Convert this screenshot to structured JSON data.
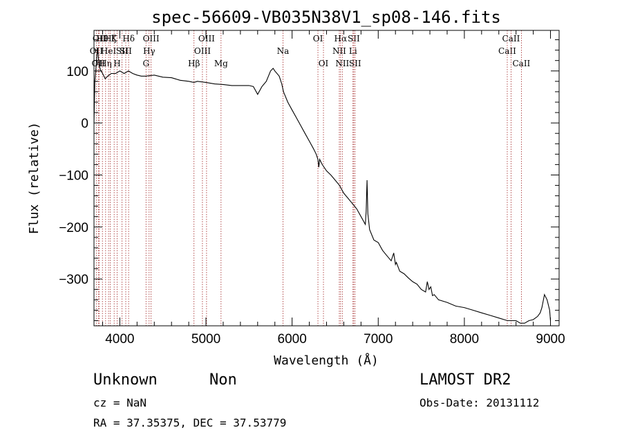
{
  "chart_data": {
    "type": "line",
    "title": "spec-56609-VB035N38V1_sp08-146.fits",
    "xlabel": "Wavelength (Å)",
    "ylabel": "Flux (relative)",
    "xlim": [
      3700,
      9100
    ],
    "ylim": [
      -390,
      178
    ],
    "x_ticks": [
      4000,
      5000,
      6000,
      7000,
      8000,
      9000
    ],
    "y_ticks": [
      100,
      0,
      -100,
      -200,
      -300
    ],
    "grid": false,
    "series": [
      {
        "x": [
          3700,
          3710,
          3720,
          3730,
          3740,
          3760,
          3780,
          3800,
          3830,
          3860,
          3900,
          3950,
          4000,
          4050,
          4100,
          4150,
          4200,
          4250,
          4300,
          4400,
          4500,
          4600,
          4700,
          4800,
          4860,
          4900,
          5000,
          5100,
          5200,
          5300,
          5400,
          5500,
          5550,
          5600,
          5650,
          5700,
          5750,
          5780,
          5800,
          5850,
          5880,
          5900,
          5950,
          6000,
          6050,
          6100,
          6150,
          6200,
          6250,
          6280,
          6300,
          6310,
          6320,
          6350,
          6400,
          6450,
          6500,
          6550,
          6600,
          6650,
          6700,
          6750,
          6800,
          6850,
          6860,
          6870,
          6880,
          6900,
          6950,
          7000,
          7050,
          7100,
          7150,
          7180,
          7200,
          7210,
          7250,
          7300,
          7350,
          7400,
          7450,
          7500,
          7550,
          7570,
          7590,
          7610,
          7630,
          7650,
          7700,
          7800,
          7900,
          8000,
          8100,
          8200,
          8300,
          8400,
          8500,
          8550,
          8600,
          8650,
          8700,
          8750,
          8800,
          8850,
          8880,
          8900,
          8930,
          8960,
          8990,
          9000
        ],
        "values": [
          0,
          80,
          100,
          120,
          145,
          110,
          100,
          95,
          85,
          90,
          95,
          95,
          100,
          95,
          100,
          95,
          92,
          90,
          90,
          92,
          88,
          87,
          82,
          80,
          78,
          80,
          78,
          75,
          74,
          72,
          72,
          72,
          70,
          55,
          70,
          80,
          100,
          105,
          100,
          90,
          75,
          60,
          40,
          25,
          10,
          -5,
          -20,
          -35,
          -50,
          -60,
          -70,
          -85,
          -70,
          -80,
          -92,
          -100,
          -110,
          -120,
          -135,
          -145,
          -155,
          -165,
          -180,
          -195,
          -170,
          -110,
          -175,
          -205,
          -225,
          -230,
          -245,
          -255,
          -265,
          -250,
          -272,
          -268,
          -285,
          -290,
          -298,
          -305,
          -310,
          -320,
          -325,
          -305,
          -320,
          -315,
          -332,
          -330,
          -340,
          -345,
          -352,
          -355,
          -360,
          -365,
          -370,
          -375,
          -380,
          -380,
          -380,
          -385,
          -385,
          -380,
          -378,
          -372,
          -365,
          -355,
          -330,
          -340,
          -360,
          -380
        ]
      }
    ],
    "line_markers": [
      {
        "wavelength": 3727,
        "label": "OII",
        "row": 2
      },
      {
        "wavelength": 3750,
        "label": "OII",
        "row": 3
      },
      {
        "wavelength": 3760,
        "label": "OII",
        "row": 1
      },
      {
        "wavelength": 3798,
        "label": "Hθ",
        "row": 1
      },
      {
        "wavelength": 3835,
        "label": "Hη",
        "row": 3
      },
      {
        "wavelength": 3869,
        "label": "HeI",
        "row": 2
      },
      {
        "wavelength": 3889,
        "label": "Hζ",
        "row": 1
      },
      {
        "wavelength": 3934,
        "label": "K",
        "row": 1
      },
      {
        "wavelength": 3969,
        "label": "H",
        "row": 3
      },
      {
        "wavelength": 4026,
        "label": "SII",
        "row": 2
      },
      {
        "wavelength": 4102,
        "label": "Hδ",
        "row": 1
      },
      {
        "wavelength": 4069,
        "label": "SII",
        "row": 2
      },
      {
        "wavelength": 4304,
        "label": "G",
        "row": 3
      },
      {
        "wavelength": 4340,
        "label": "Hγ",
        "row": 2
      },
      {
        "wavelength": 4363,
        "label": "OIII",
        "row": 1
      },
      {
        "wavelength": 4861,
        "label": "Hβ",
        "row": 3
      },
      {
        "wavelength": 4959,
        "label": "OIII",
        "row": 2
      },
      {
        "wavelength": 5007,
        "label": "OIII",
        "row": 1
      },
      {
        "wavelength": 5175,
        "label": "Mg",
        "row": 3
      },
      {
        "wavelength": 5894,
        "label": "Na",
        "row": 2
      },
      {
        "wavelength": 6300,
        "label": "OI",
        "row": 1
      },
      {
        "wavelength": 6364,
        "label": "OI",
        "row": 3
      },
      {
        "wavelength": 6548,
        "label": "NII",
        "row": 2
      },
      {
        "wavelength": 6563,
        "label": "Hα",
        "row": 1
      },
      {
        "wavelength": 6583,
        "label": "NII",
        "row": 3
      },
      {
        "wavelength": 6707,
        "label": "Li",
        "row": 2
      },
      {
        "wavelength": 6716,
        "label": "SII",
        "row": 1
      },
      {
        "wavelength": 6731,
        "label": "SII",
        "row": 3
      },
      {
        "wavelength": 8498,
        "label": "CaII",
        "row": 2
      },
      {
        "wavelength": 8542,
        "label": "CaII",
        "row": 1
      },
      {
        "wavelength": 8662,
        "label": "CaII",
        "row": 3
      }
    ]
  },
  "info": {
    "classification": "Unknown",
    "subclass": "Non",
    "cz": "cz = NaN",
    "coords": "RA =  37.35375, DEC =  37.53779",
    "survey": "LAMOST DR2",
    "obs_date": "Obs-Date: 20131112"
  },
  "colors": {
    "line_marker": "#a02020",
    "spectrum": "#000000"
  }
}
